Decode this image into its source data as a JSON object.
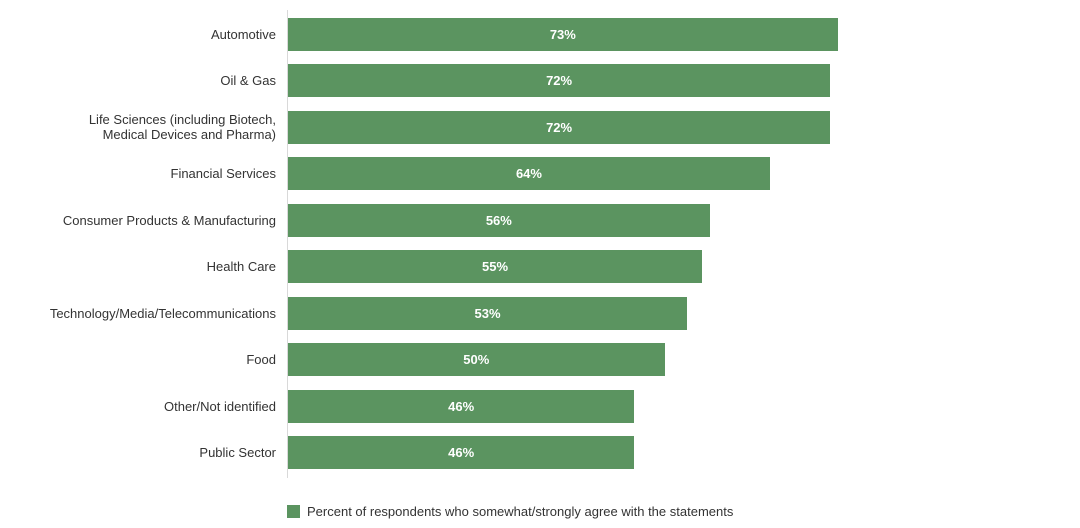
{
  "chart_data": {
    "type": "bar",
    "orientation": "horizontal",
    "title": "",
    "xlabel": "",
    "ylabel": "",
    "xlim": [
      0,
      100
    ],
    "grid": false,
    "legend_position": "bottom-left",
    "bar_color": "#5b9460",
    "categories": [
      "Automotive",
      "Oil & Gas",
      "Life Sciences (including Biotech,\nMedical Devices and Pharma)",
      "Financial Services",
      "Consumer Products & Manufacturing",
      "Health Care",
      "Technology/Media/Telecommunications",
      "Food",
      "Other/Not identified",
      "Public Sector"
    ],
    "values": [
      73,
      72,
      72,
      64,
      56,
      55,
      53,
      50,
      46,
      46
    ],
    "data_labels": [
      "73%",
      "72%",
      "72%",
      "64%",
      "56%",
      "55%",
      "53%",
      "50%",
      "46%",
      "46%"
    ],
    "series": [
      {
        "name": "Percent of respondents who somewhat/strongly agree with the statements",
        "values": [
          73,
          72,
          72,
          64,
          56,
          55,
          53,
          50,
          46,
          46
        ]
      }
    ]
  }
}
